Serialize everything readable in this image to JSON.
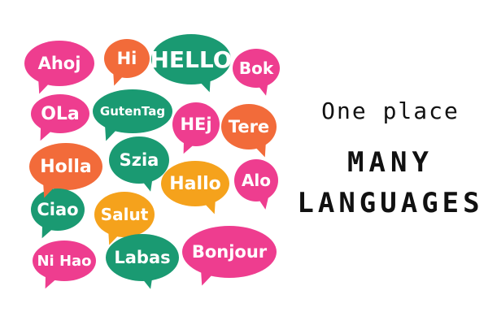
{
  "colors": {
    "pink": "#ee3d8f",
    "green": "#1a9a72",
    "orange": "#f26b3a",
    "amber": "#f5a21c"
  },
  "bubbles": [
    {
      "text": "Ahoj",
      "color": "pink"
    },
    {
      "text": "Hi",
      "color": "orange"
    },
    {
      "text": "HELLO",
      "color": "green"
    },
    {
      "text": "Bok",
      "color": "pink"
    },
    {
      "text": "OLa",
      "color": "pink"
    },
    {
      "text": "GutenTag",
      "color": "green"
    },
    {
      "text": "HEj",
      "color": "pink"
    },
    {
      "text": "Tere",
      "color": "orange"
    },
    {
      "text": "Holla",
      "color": "orange"
    },
    {
      "text": "Szia",
      "color": "green"
    },
    {
      "text": "Hallo",
      "color": "amber"
    },
    {
      "text": "Alo",
      "color": "pink"
    },
    {
      "text": "Ciao",
      "color": "green"
    },
    {
      "text": "Salut",
      "color": "amber"
    },
    {
      "text": "Ni Hao",
      "color": "pink"
    },
    {
      "text": "Labas",
      "color": "green"
    },
    {
      "text": "Bonjour",
      "color": "pink"
    }
  ],
  "tagline": {
    "line1": "One place",
    "line2": "MANY",
    "line3": "LANGUAGES"
  }
}
